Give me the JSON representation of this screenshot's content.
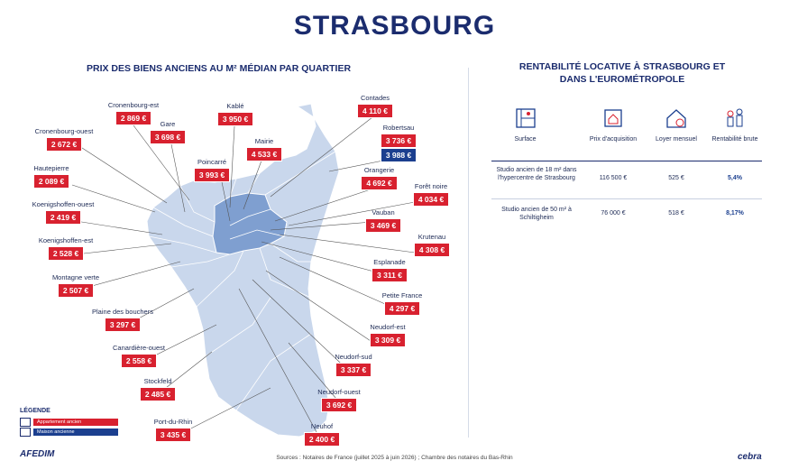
{
  "title": "STRASBOURG",
  "map_title": "PRIX DES BIENS ANCIENS AU M² MÉDIAN PAR QUARTIER",
  "right_title": "RENTABILITÉ LOCATIVE À STRASBOURG ET DANS L'EUROMÉTROPOLE",
  "colors": {
    "apartment": "#d8212f",
    "house": "#1b3f8f",
    "map_light": "#c9d7ec",
    "map_dark": "#7f9fd0",
    "title": "#1b2c6e"
  },
  "districts": {
    "cronenbourg_est": {
      "name": "Cronenbourg-est",
      "price": "2 869 €"
    },
    "gare": {
      "name": "Gare",
      "price": "3 698 €"
    },
    "kable": {
      "name": "Kablé",
      "price": "3 950 €"
    },
    "contades": {
      "name": "Contades",
      "price": "4 110 €"
    },
    "cronenbourg_ouest": {
      "name": "Cronenbourg-ouest",
      "price": "2 672 €"
    },
    "mairie": {
      "name": "Mairie",
      "price": "4 533 €"
    },
    "robertsau": {
      "name": "Robertsau",
      "price": "3 736 €",
      "price_house": "3 988 €"
    },
    "poincarre": {
      "name": "Poincarré",
      "price": "3 993 €"
    },
    "hautepierre": {
      "name": "Hautepierre",
      "price": "2 089 €"
    },
    "orangerie": {
      "name": "Orangerie",
      "price": "4 692 €"
    },
    "foret_noire": {
      "name": "Forêt noire",
      "price": "4 034 €"
    },
    "koenigshoffen_ouest": {
      "name": "Koenigshoffen-ouest",
      "price": "2 419 €"
    },
    "vauban": {
      "name": "Vauban",
      "price": "3 469 €"
    },
    "krutenau": {
      "name": "Krutenau",
      "price": "4 308 €"
    },
    "koenigshoffen_est": {
      "name": "Koenigshoffen-est",
      "price": "2 528 €"
    },
    "esplanade": {
      "name": "Esplanade",
      "price": "3 311 €"
    },
    "montagne_verte": {
      "name": "Montagne verte",
      "price": "2 507 €"
    },
    "petite_france": {
      "name": "Petite France",
      "price": "4 297 €"
    },
    "plaine_des_bouchers": {
      "name": "Plaine des bouchers",
      "price": "3 297 €"
    },
    "neudorf_est": {
      "name": "Neudorf-est",
      "price": "3 309 €"
    },
    "canardiere_ouest": {
      "name": "Canardière-ouest",
      "price": "2 558 €"
    },
    "neudorf_sud": {
      "name": "Neudorf-sud",
      "price": "3 337 €"
    },
    "stockfeld": {
      "name": "Stockfeld",
      "price": "2 485 €"
    },
    "neudorf_ouest": {
      "name": "Neudorf-ouest",
      "price": "3 692 €"
    },
    "port_du_rhin": {
      "name": "Port-du-Rhin",
      "price": "3 435 €"
    },
    "neuhof": {
      "name": "Neuhof",
      "price": "2 400 €"
    }
  },
  "legend": {
    "title": "LÉGENDE",
    "apartment": "Appartement ancien",
    "house": "Maison ancienne"
  },
  "table": {
    "headers": [
      "Surface",
      "Prix d'acquisition",
      "Loyer mensuel",
      "Rentabilité brute"
    ],
    "icons": [
      "blueprint-icon",
      "price-tag-house-icon",
      "house-euro-icon",
      "chess-pieces-icon"
    ],
    "rows": [
      {
        "surface": "Studio ancien de 18 m² dans l'hypercentre de Strasbourg",
        "price": "116 500 €",
        "rent": "525 €",
        "yield": "5,4%"
      },
      {
        "surface": "Studio ancien de 50 m² à Schiltigheim",
        "price": "76 000 €",
        "rent": "518 €",
        "yield": "8,17%"
      }
    ]
  },
  "footer": {
    "sources": "Sources : Notaires de France (juillet 2025 à juin 2026) ; Chambre des notaires du Bas-Rhin",
    "brand_left": "AFEDIM",
    "brand_right": "cebra"
  }
}
